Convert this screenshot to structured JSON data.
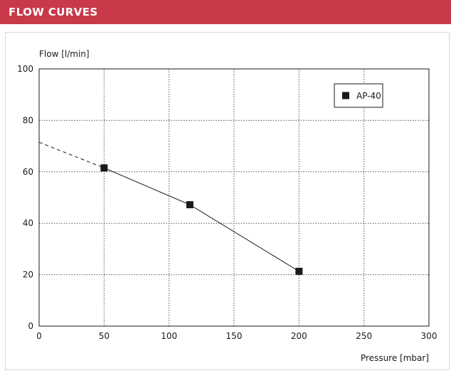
{
  "header": {
    "title": "FLOW CURVES"
  },
  "colors": {
    "header_background": "#c8394a",
    "header_text": "#ffffff",
    "series": "#1a1a1a",
    "grid": "#555555"
  },
  "chart_data": {
    "type": "line",
    "title": "",
    "xlabel": "Pressure [mbar]",
    "ylabel": "Flow [l/min]",
    "xlim": [
      0,
      300
    ],
    "ylim": [
      0,
      100
    ],
    "x_ticks": [
      0,
      50,
      100,
      150,
      200,
      250,
      300
    ],
    "y_ticks": [
      0,
      20,
      40,
      60,
      80,
      100
    ],
    "grid": true,
    "grid_style": "dotted",
    "legend_position": "top-right",
    "series": [
      {
        "name": "AP-40",
        "marker": "square",
        "points": [
          {
            "x": 50,
            "y": 61.5
          },
          {
            "x": 116,
            "y": 47.2
          },
          {
            "x": 200,
            "y": 21.3
          }
        ],
        "extrapolation": {
          "style": "dashed",
          "points": [
            {
              "x": 0,
              "y": 71.5
            },
            {
              "x": 50,
              "y": 61.5
            }
          ]
        }
      }
    ]
  }
}
